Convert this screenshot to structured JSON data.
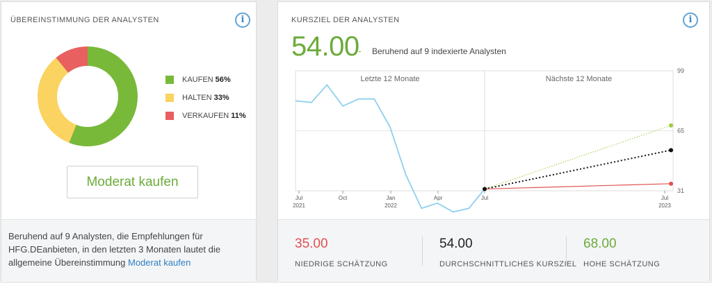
{
  "consensus": {
    "title": "ÜBEREINSTIMMUNG DER ANALYSTEN",
    "info_icon": "i",
    "legend": [
      {
        "label": "KAUFEN",
        "percent": "56%",
        "value": 56,
        "color": "#79b93a"
      },
      {
        "label": "HALTEN",
        "percent": "33%",
        "value": 33,
        "color": "#fad360"
      },
      {
        "label": "VERKAUFEN",
        "percent": "11%",
        "value": 11,
        "color": "#e8605f"
      }
    ],
    "rating": "Moderat kaufen",
    "footer_text": "Beruhend auf 9 Analysten, die Empfehlungen für HFG.DEanbieten, in den letzten 3 Monaten lautet die allgemeine Übereinstimmung",
    "footer_link": "Moderat kaufen"
  },
  "target": {
    "title": "KURSZIEL DER ANALYSTEN",
    "info_icon": "i",
    "price": "54.00",
    "dash": "-",
    "note": "Beruhend auf 9 indexierte Analysten",
    "estimates": [
      {
        "value": "35.00",
        "label": "NIEDRIGE SCHÄTZUNG",
        "color": "#e05050"
      },
      {
        "value": "54.00",
        "label": "DURCHSCHNITTLICHES KURSZIEL",
        "color": "#222222"
      },
      {
        "value": "68.00",
        "label": "HOHE SCHÄTZUNG",
        "color": "#6cab3a"
      }
    ]
  },
  "chart_data": {
    "type": "line",
    "section_labels": [
      "Letzte 12 Monate",
      "Nächste 12 Monate"
    ],
    "y_ticks": [
      "99",
      "65",
      "31"
    ],
    "ylim": [
      31,
      99
    ],
    "x_ticks": [
      {
        "label": "Jul",
        "sub": "2021"
      },
      {
        "label": "Oct",
        "sub": ""
      },
      {
        "label": "Jan",
        "sub": "2022"
      },
      {
        "label": "Apr",
        "sub": ""
      },
      {
        "label": "Jul",
        "sub": ""
      },
      {
        "label": "Jul",
        "sub": "2023"
      }
    ],
    "series": [
      {
        "values": [
          82,
          81,
          91,
          79,
          83,
          83,
          67,
          40,
          21,
          24,
          19,
          21,
          32
        ]
      }
    ],
    "projections": [
      {
        "name": "high",
        "from": 32,
        "to": 68,
        "color": "#9ccc3a"
      },
      {
        "name": "average",
        "from": 32,
        "to": 54,
        "color": "#111111"
      },
      {
        "name": "low",
        "from": 32,
        "to": 35,
        "color": "#e05050"
      }
    ],
    "colors": {
      "history": "#8fd0ee",
      "grid": "#e6e6e6"
    }
  }
}
